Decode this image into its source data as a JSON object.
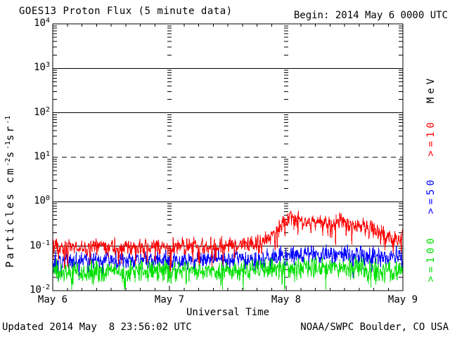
{
  "header": {
    "title": "GOES13 Proton Flux (5 minute data)",
    "begin_label": "Begin: 2014 May 6 0000 UTC"
  },
  "footer": {
    "updated": "Updated 2014 May  8 23:56:02 UTC",
    "source": "NOAA/SWPC Boulder, CO USA"
  },
  "colors": {
    "background": "#ffffff",
    "axis": "#000000",
    "flux_gt10": "#ff0000",
    "flux_gt50": "#0000ff",
    "flux_gt100": "#00e000"
  },
  "chart_data": {
    "type": "line",
    "title": "GOES13 Proton Flux (5 minute data)",
    "subtitle": "Begin: 2014 May 6 0000 UTC",
    "xlabel": "Universal Time",
    "ylabel": "Particles cm-2 s-1 sr-1",
    "ylabel_parts": [
      {
        "text": "Particles  cm"
      },
      {
        "text": "-2",
        "sup": true
      },
      {
        "text": "s"
      },
      {
        "text": "-1",
        "sup": true
      },
      {
        "text": "sr"
      },
      {
        "text": "-1",
        "sup": true
      }
    ],
    "x_axis": {
      "range_hours": [
        0,
        72
      ],
      "minor_tick_hours": 3,
      "tick_labels": [
        {
          "label": "May 6",
          "hour": 0
        },
        {
          "label": "May 7",
          "hour": 24
        },
        {
          "label": "May 8",
          "hour": 48
        },
        {
          "label": "May 9",
          "hour": 72
        }
      ]
    },
    "y_axis": {
      "scale": "log",
      "exponent_range": [
        -2,
        4
      ],
      "tick_exponents": [
        4,
        3,
        2,
        1,
        0,
        -1,
        -2
      ]
    },
    "grid": {
      "solid_decade_exponents": [
        3,
        2,
        0,
        -1
      ],
      "dashed_decade_exponents": [
        1
      ],
      "day_gridline_hours": [
        24,
        48
      ]
    },
    "legend": {
      "units_label": "MeV",
      "units_color": "#000000",
      "entries": [
        {
          "label": ">=10",
          "color": "#ff0000"
        },
        {
          "label": ">=50",
          "color": "#0000ff"
        },
        {
          "label": ">=100",
          "color": "#00e000"
        }
      ]
    },
    "sample_interval_minutes": 5,
    "noise_seed": 11,
    "ymin_clamp": 0.0105,
    "series": [
      {
        "name": "gt10",
        "label": ">=10 MeV",
        "color": "#ff0000",
        "sigma": 0.11,
        "dip_chance": 0.07,
        "dip_depth": 0.28,
        "trend": [
          [
            0,
            0.095
          ],
          [
            6,
            0.095
          ],
          [
            12,
            0.1
          ],
          [
            18,
            0.096
          ],
          [
            24,
            0.1
          ],
          [
            30,
            0.105
          ],
          [
            36,
            0.11
          ],
          [
            40,
            0.115
          ],
          [
            43,
            0.12
          ],
          [
            45,
            0.165
          ],
          [
            46,
            0.22
          ],
          [
            47,
            0.3
          ],
          [
            48,
            0.36
          ],
          [
            49,
            0.4
          ],
          [
            50,
            0.41
          ],
          [
            51,
            0.38
          ],
          [
            52,
            0.35
          ],
          [
            54,
            0.34
          ],
          [
            55,
            0.38
          ],
          [
            57,
            0.32
          ],
          [
            59,
            0.36
          ],
          [
            61,
            0.33
          ],
          [
            62,
            0.3
          ],
          [
            64,
            0.3
          ],
          [
            66,
            0.24
          ],
          [
            68,
            0.19
          ],
          [
            70,
            0.145
          ],
          [
            71,
            0.13
          ],
          [
            72,
            0.16
          ]
        ]
      },
      {
        "name": "gt50",
        "label": ">=50 MeV",
        "color": "#0000ff",
        "sigma": 0.13,
        "dip_chance": 0.07,
        "dip_depth": 0.22,
        "trend": [
          [
            0,
            0.048
          ],
          [
            12,
            0.047
          ],
          [
            24,
            0.05
          ],
          [
            36,
            0.05
          ],
          [
            43,
            0.05
          ],
          [
            46,
            0.058
          ],
          [
            48,
            0.063
          ],
          [
            52,
            0.067
          ],
          [
            56,
            0.07
          ],
          [
            60,
            0.066
          ],
          [
            64,
            0.062
          ],
          [
            68,
            0.058
          ],
          [
            72,
            0.06
          ]
        ]
      },
      {
        "name": "gt100",
        "label": ">=100 MeV",
        "color": "#00e000",
        "sigma": 0.15,
        "dip_chance": 0.08,
        "dip_depth": 0.2,
        "trend": [
          [
            0,
            0.027
          ],
          [
            12,
            0.026
          ],
          [
            24,
            0.028
          ],
          [
            36,
            0.028
          ],
          [
            44,
            0.03
          ],
          [
            48,
            0.033
          ],
          [
            56,
            0.034
          ],
          [
            64,
            0.03
          ],
          [
            72,
            0.028
          ]
        ]
      }
    ]
  }
}
